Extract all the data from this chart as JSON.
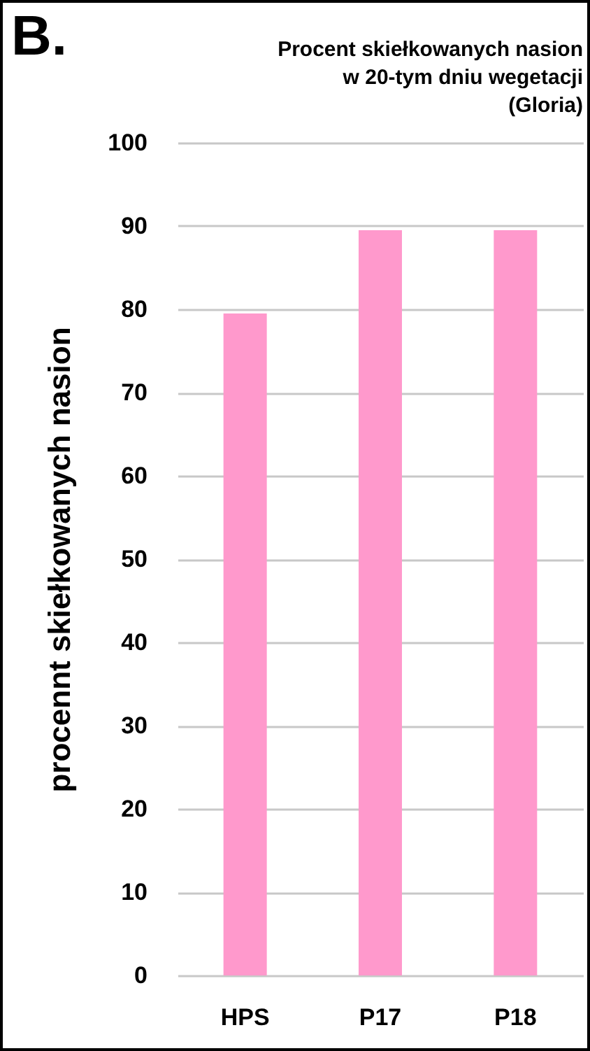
{
  "chart_data": {
    "type": "bar",
    "title": "Procent skiełkowanych nasion\nw 20-tym dniu wegetacji\n(Gloria)",
    "ylabel": "procennt skiełkowanych nasion",
    "annotations": [
      "B."
    ],
    "categories": [
      "HPS",
      "P17",
      "P18"
    ],
    "values": [
      79.5,
      89.5,
      89.5
    ],
    "color": "#ff99cc",
    "ylim": [
      0,
      100
    ],
    "yticks": [
      0,
      10,
      20,
      30,
      40,
      50,
      60,
      70,
      80,
      90,
      100
    ],
    "grid": "y"
  }
}
